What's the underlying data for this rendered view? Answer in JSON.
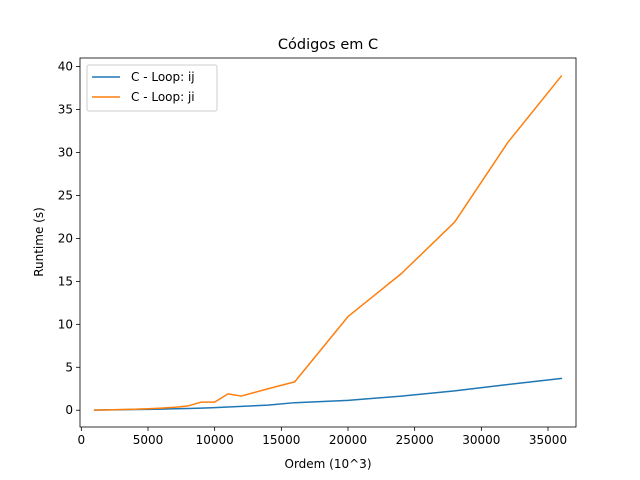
{
  "chart_data": {
    "type": "line",
    "title": "Códigos em C",
    "xlabel": "Ordem (10^3)",
    "ylabel": "Runtime (s)",
    "xlim": [
      -100,
      37100
    ],
    "ylim": [
      -1.95,
      41.0
    ],
    "xticks": [
      0,
      5000,
      10000,
      15000,
      20000,
      25000,
      30000,
      35000
    ],
    "yticks": [
      0,
      5,
      10,
      15,
      20,
      25,
      30,
      35,
      40
    ],
    "legend_position": "top-left",
    "grid": false,
    "series": [
      {
        "name": "C - Loop: ij",
        "color": "#1f77b4",
        "x": [
          1000,
          2000,
          3000,
          4000,
          5000,
          6000,
          7000,
          8000,
          9000,
          10000,
          11000,
          12000,
          14000,
          16000,
          20000,
          24000,
          28000,
          32000,
          36000
        ],
        "y": [
          0.02,
          0.04,
          0.06,
          0.08,
          0.1,
          0.13,
          0.17,
          0.2,
          0.25,
          0.3,
          0.38,
          0.45,
          0.6,
          0.88,
          1.15,
          1.65,
          2.25,
          3.0,
          3.7
        ]
      },
      {
        "name": "C - Loop: ji",
        "color": "#ff7f0e",
        "x": [
          1000,
          2000,
          3000,
          4000,
          5000,
          6000,
          7000,
          8000,
          9000,
          10000,
          11000,
          12000,
          14000,
          16000,
          20000,
          24000,
          28000,
          32000,
          36000
        ],
        "y": [
          0.02,
          0.05,
          0.08,
          0.12,
          0.18,
          0.25,
          0.35,
          0.5,
          0.95,
          0.95,
          1.9,
          1.65,
          2.5,
          3.3,
          10.9,
          15.9,
          21.9,
          31.2,
          38.9
        ]
      }
    ]
  }
}
